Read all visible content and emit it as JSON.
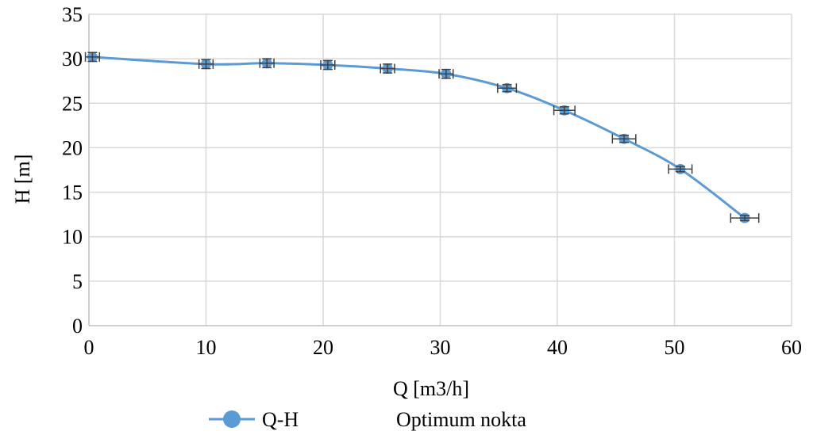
{
  "chart_data": {
    "type": "scatter",
    "title": "",
    "xlabel": "Q [m3/h]",
    "ylabel": "H [m]",
    "xlim": [
      0,
      60
    ],
    "ylim": [
      0,
      35
    ],
    "x_ticks": [
      0,
      10,
      20,
      30,
      40,
      50,
      60
    ],
    "y_ticks": [
      0,
      5,
      10,
      15,
      20,
      25,
      30,
      35
    ],
    "grid": true,
    "legend_position": "bottom",
    "series": [
      {
        "name": "Q-H",
        "color": "#5b9bd5",
        "marker_color": "#5b9bd5",
        "error_bar_color": "#404040",
        "x": [
          0.3,
          10.0,
          15.2,
          20.4,
          25.5,
          30.5,
          35.7,
          40.6,
          45.7,
          50.5,
          56.0
        ],
        "y": [
          30.2,
          29.4,
          29.5,
          29.3,
          28.9,
          28.3,
          26.7,
          24.2,
          21.0,
          17.6,
          12.1
        ],
        "x_error": [
          0.6,
          0.6,
          0.6,
          0.6,
          0.6,
          0.6,
          0.8,
          0.9,
          1.0,
          1.0,
          1.2
        ],
        "y_error": [
          0.5,
          0.5,
          0.5,
          0.5,
          0.5,
          0.5,
          0.4,
          0.4,
          0.4,
          0.3,
          0.3
        ]
      },
      {
        "name": "Optimum nokta",
        "x": [],
        "y": []
      }
    ]
  }
}
